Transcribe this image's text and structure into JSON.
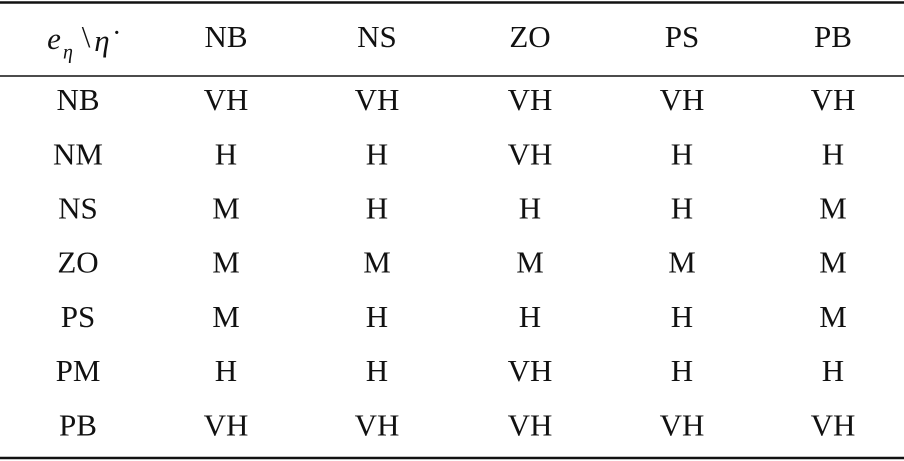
{
  "table": {
    "corner": {
      "base": "e",
      "sub": "η",
      "sep": "\\",
      "var": "η̇"
    },
    "columns": [
      "NB",
      "NS",
      "ZO",
      "PS",
      "PB"
    ],
    "rows": [
      [
        "NB",
        "VH",
        "VH",
        "VH",
        "VH",
        "VH"
      ],
      [
        "NM",
        "H",
        "H",
        "VH",
        "H",
        "H"
      ],
      [
        "NS",
        "M",
        "H",
        "H",
        "H",
        "M"
      ],
      [
        "ZO",
        "M",
        "M",
        "M",
        "M",
        "M"
      ],
      [
        "PS",
        "M",
        "H",
        "H",
        "H",
        "M"
      ],
      [
        "PM",
        "H",
        "H",
        "VH",
        "H",
        "H"
      ],
      [
        "PB",
        "VH",
        "VH",
        "VH",
        "VH",
        "VH"
      ]
    ]
  }
}
